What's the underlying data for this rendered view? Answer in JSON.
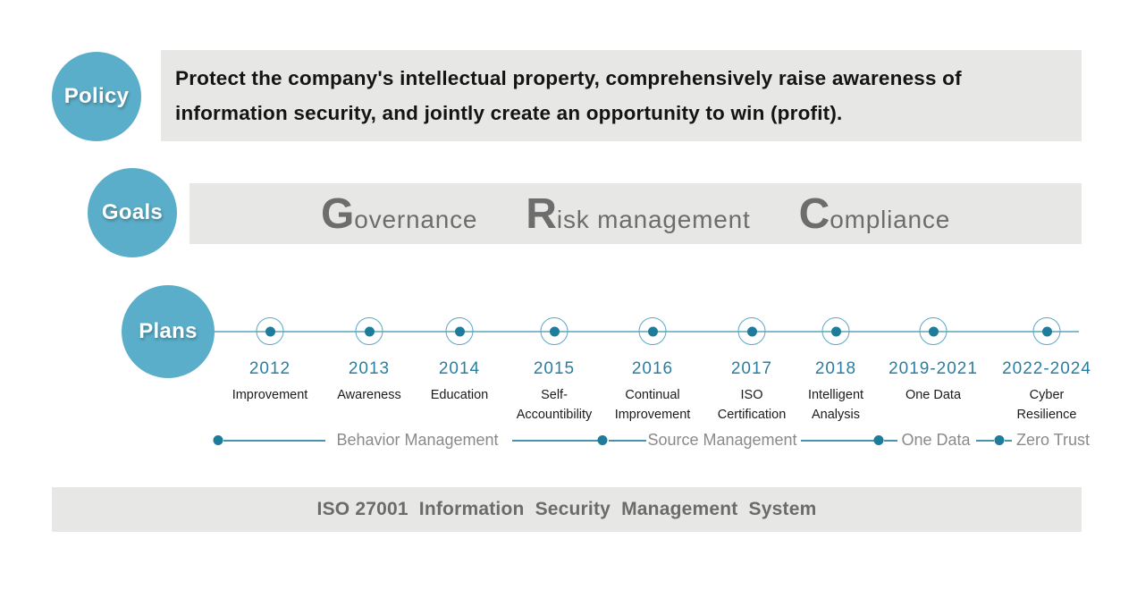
{
  "colors": {
    "accent_teal": "#5aaec9",
    "dark_teal_dot": "#1d7b9b",
    "timeline_line": "#85b9cc",
    "year_teal": "#2a7ea1",
    "box_gray": "#e7e7e6",
    "policy_text": "#141414",
    "goals_text": "#6d6d6d",
    "phase_text": "#8a8a8a",
    "footer_text": "#6b6b6b"
  },
  "policy": {
    "bubble_label": "Policy",
    "text_lines": [
      "Protect the company's intellectual property, comprehensively raise awareness of",
      "information security, and jointly create an opportunity to win (profit)."
    ]
  },
  "goals": {
    "bubble_label": "Goals",
    "items": [
      {
        "initial": "G",
        "rest": "overnance"
      },
      {
        "initial": "R",
        "rest": "isk management"
      },
      {
        "initial": "C",
        "rest": "ompliance"
      }
    ]
  },
  "plans": {
    "bubble_label": "Plans",
    "milestones": [
      {
        "year": "2012",
        "label_lines": [
          "Improvement"
        ]
      },
      {
        "year": "2013",
        "label_lines": [
          "Awareness"
        ]
      },
      {
        "year": "2014",
        "label_lines": [
          "Education"
        ]
      },
      {
        "year": "2015",
        "label_lines": [
          "Self-",
          "Accountibility"
        ]
      },
      {
        "year": "2016",
        "label_lines": [
          "Continual",
          "Improvement"
        ]
      },
      {
        "year": "2017",
        "label_lines": [
          "ISO",
          "Certification"
        ]
      },
      {
        "year": "2018",
        "label_lines": [
          "Intelligent",
          "Analysis"
        ]
      },
      {
        "year": "2019-2021",
        "label_lines": [
          "One Data"
        ]
      },
      {
        "year": "2022-2024",
        "label_lines": [
          "Cyber",
          "Resilience"
        ]
      }
    ],
    "phases": [
      "Behavior Management",
      "Source Management",
      "One Data",
      "Zero Trust"
    ]
  },
  "footer": {
    "text": "ISO 27001  Information  Security  Management  System"
  }
}
